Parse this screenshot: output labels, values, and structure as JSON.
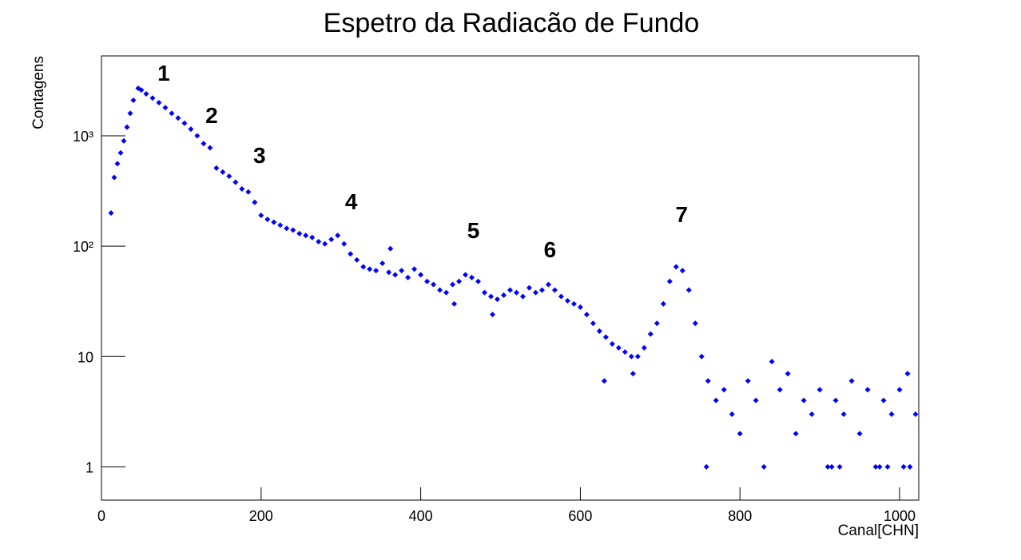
{
  "chart_data": {
    "type": "scatter",
    "title": "Espetro da Radiacão de Fundo",
    "x_label": "Canal[CHN]",
    "y_label": "Contagens",
    "log_y": true,
    "color": "#0000ff",
    "xlim": [
      0,
      1024
    ],
    "ylim": [
      0.5,
      5300
    ],
    "xticks": [
      0,
      200,
      400,
      600,
      800,
      1000
    ],
    "yticks": [
      1,
      10,
      {
        "value": 100,
        "label": "10²"
      },
      {
        "value": 1000,
        "label": "10³"
      }
    ],
    "annotations": [
      {
        "text": "1",
        "x": 78,
        "y": 3720
      },
      {
        "text": "2",
        "x": 138,
        "y": 1550
      },
      {
        "text": "3",
        "x": 198,
        "y": 670
      },
      {
        "text": "4",
        "x": 313,
        "y": 255
      },
      {
        "text": "5",
        "x": 466,
        "y": 140
      },
      {
        "text": "6",
        "x": 562,
        "y": 94
      },
      {
        "text": "7",
        "x": 727,
        "y": 195
      }
    ],
    "x": [
      12,
      16,
      20,
      24,
      28,
      32,
      36,
      40,
      46,
      50,
      56,
      64,
      72,
      80,
      88,
      96,
      104,
      112,
      120,
      128,
      136,
      144,
      152,
      160,
      168,
      176,
      184,
      192,
      200,
      208,
      216,
      224,
      232,
      240,
      248,
      256,
      264,
      272,
      280,
      288,
      296,
      304,
      312,
      320,
      328,
      336,
      344,
      352,
      360,
      368,
      376,
      384,
      392,
      400,
      408,
      416,
      424,
      432,
      440,
      448,
      456,
      464,
      472,
      480,
      488,
      496,
      504,
      512,
      520,
      528,
      536,
      544,
      552,
      560,
      568,
      576,
      584,
      592,
      600,
      608,
      616,
      624,
      632,
      640,
      648,
      656,
      664,
      672,
      680,
      688,
      696,
      704,
      712,
      720,
      728,
      736,
      744,
      752,
      760,
      362,
      442,
      490,
      630,
      666,
      758,
      770,
      780,
      790,
      800,
      810,
      820,
      830,
      840,
      850,
      860,
      870,
      880,
      890,
      900,
      910,
      915,
      920,
      925,
      930,
      940,
      950,
      960,
      970,
      975,
      980,
      985,
      990,
      1000,
      1005,
      1010,
      1013,
      1020
    ],
    "y": [
      200,
      420,
      560,
      700,
      900,
      1200,
      1600,
      2100,
      2700,
      2600,
      2400,
      2200,
      2000,
      1800,
      1600,
      1450,
      1300,
      1150,
      1000,
      850,
      780,
      510,
      470,
      430,
      380,
      330,
      310,
      250,
      190,
      175,
      165,
      155,
      145,
      140,
      130,
      125,
      120,
      110,
      105,
      115,
      125,
      105,
      85,
      75,
      65,
      62,
      60,
      70,
      58,
      55,
      60,
      52,
      62,
      55,
      48,
      45,
      40,
      38,
      45,
      48,
      55,
      52,
      48,
      38,
      35,
      33,
      36,
      40,
      38,
      35,
      42,
      38,
      40,
      45,
      40,
      35,
      32,
      30,
      28,
      24,
      20,
      17,
      15,
      13,
      12,
      11,
      10,
      10,
      12,
      16,
      20,
      30,
      48,
      65,
      60,
      40,
      20,
      10,
      6,
      95,
      30,
      24,
      6,
      7,
      1,
      4,
      5,
      3,
      2,
      6,
      4,
      1,
      9,
      5,
      7,
      2,
      4,
      3,
      5,
      1,
      1,
      4,
      1,
      3,
      6,
      2,
      5,
      1,
      1,
      4,
      1,
      3,
      5,
      1,
      7,
      1,
      3
    ]
  }
}
